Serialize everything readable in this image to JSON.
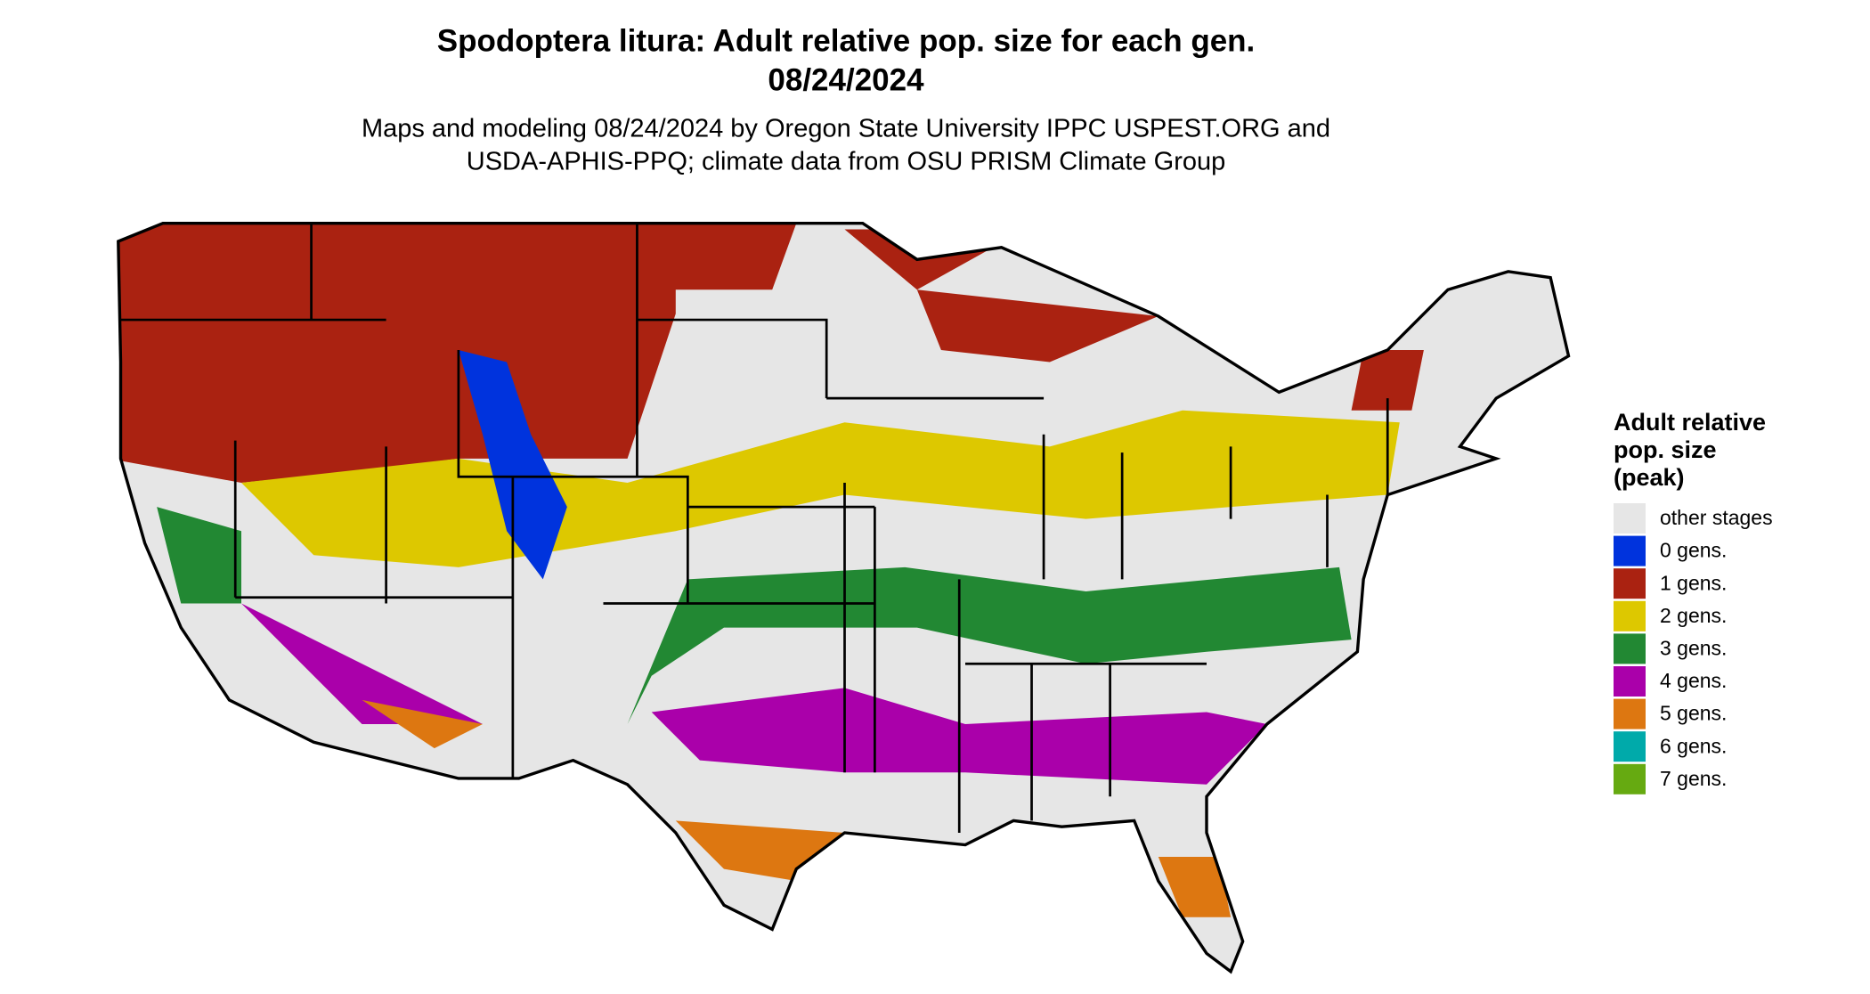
{
  "header": {
    "title": "Spodoptera litura: Adult relative pop. size for each gen.",
    "date": "08/24/2024",
    "subtitle_line1": "Maps and modeling 08/24/2024 by Oregon State University IPPC USPEST.ORG and",
    "subtitle_line2": "USDA-APHIS-PPQ; climate data from OSU PRISM Climate Group"
  },
  "legend": {
    "title_lines": [
      "Adult relative",
      "pop. size",
      "(peak)"
    ],
    "items": [
      {
        "label": "other stages",
        "color": "#e6e6e6"
      },
      {
        "label": "0 gens.",
        "color": "#0033dd"
      },
      {
        "label": "1 gens.",
        "color": "#aa2211"
      },
      {
        "label": "2 gens.",
        "color": "#ddc800"
      },
      {
        "label": "3 gens.",
        "color": "#228833"
      },
      {
        "label": "4 gens.",
        "color": "#aa00aa"
      },
      {
        "label": "5 gens.",
        "color": "#dd7711"
      },
      {
        "label": "6 gens.",
        "color": "#00aaaa"
      },
      {
        "label": "7 gens.",
        "color": "#66aa11"
      }
    ]
  }
}
